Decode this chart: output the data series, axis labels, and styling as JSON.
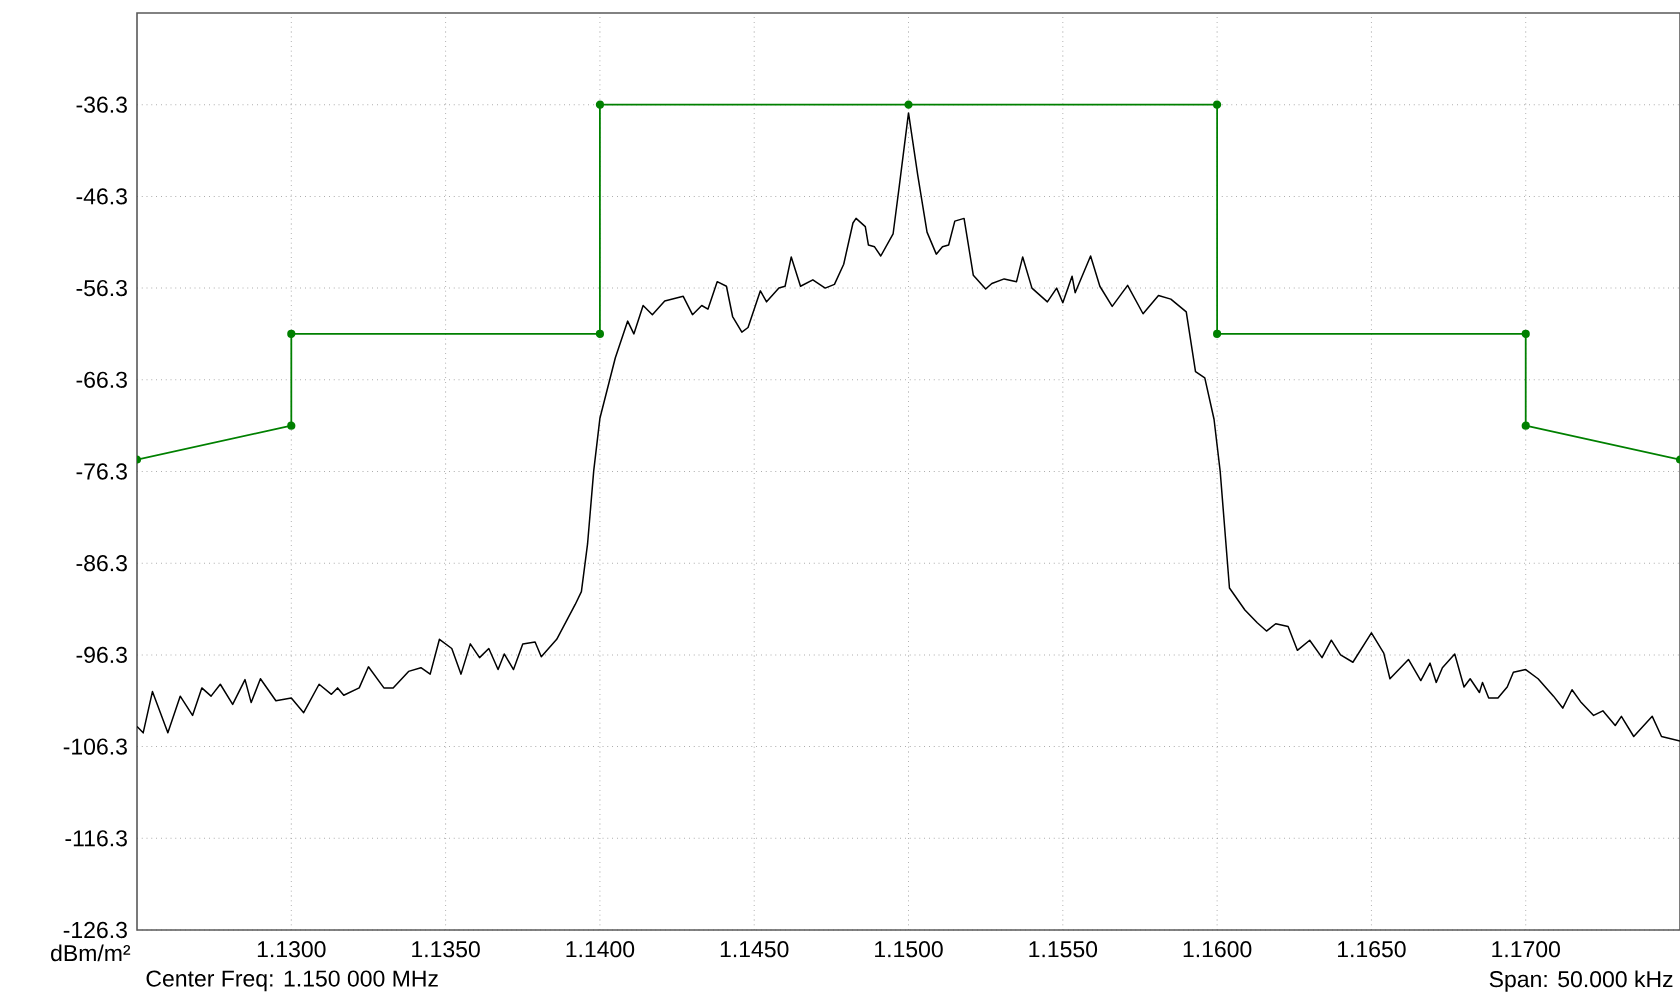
{
  "chart_data": {
    "type": "line",
    "ylabel": "dBm/m²",
    "annotations": [
      "Center Freq: 1.150 000 MHz",
      "Span: 50.000 kHz"
    ],
    "xlim": [
      1.125,
      1.175
    ],
    "ylim": [
      -126.3,
      -26.3
    ],
    "xticks": [
      {
        "value": 1.13,
        "label": "1.1300"
      },
      {
        "value": 1.135,
        "label": "1.1350"
      },
      {
        "value": 1.14,
        "label": "1.1400"
      },
      {
        "value": 1.145,
        "label": "1.1450"
      },
      {
        "value": 1.15,
        "label": "1.1500"
      },
      {
        "value": 1.155,
        "label": "1.1550"
      },
      {
        "value": 1.16,
        "label": "1.1600"
      },
      {
        "value": 1.165,
        "label": "1.1650"
      },
      {
        "value": 1.17,
        "label": "1.1700"
      }
    ],
    "yticks": [
      -126.3,
      -116.3,
      -106.3,
      -96.3,
      -86.3,
      -76.3,
      -66.3,
      -56.3,
      -46.3,
      -36.3
    ],
    "grid": true,
    "series": [
      {
        "color": "#008000",
        "marker": "circle",
        "x": [
          1.125,
          1.13,
          1.13,
          1.14,
          1.14,
          1.15,
          1.16,
          1.16,
          1.17,
          1.17,
          1.175
        ],
        "values": [
          -75.0,
          -71.3,
          -61.3,
          -61.3,
          -36.3,
          -36.3,
          -36.3,
          -61.3,
          -61.3,
          -71.3,
          -75.0
        ]
      },
      {
        "color": "#000000",
        "marker": "none",
        "x": [
          1.125,
          1.1252,
          1.1255,
          1.126,
          1.1264,
          1.1268,
          1.1271,
          1.1274,
          1.1277,
          1.1281,
          1.1285,
          1.1287,
          1.129,
          1.1295,
          1.13,
          1.1304,
          1.1309,
          1.1313,
          1.1315,
          1.1317,
          1.1322,
          1.1325,
          1.133,
          1.1333,
          1.1338,
          1.1342,
          1.1345,
          1.1348,
          1.1352,
          1.1355,
          1.1358,
          1.1361,
          1.1364,
          1.1367,
          1.1369,
          1.1372,
          1.1375,
          1.1379,
          1.1381,
          1.1386,
          1.1392,
          1.1394,
          1.1396,
          1.1398,
          1.14,
          1.1405,
          1.1409,
          1.1411,
          1.1414,
          1.1417,
          1.1421,
          1.1427,
          1.143,
          1.1433,
          1.1435,
          1.1438,
          1.1441,
          1.1443,
          1.1446,
          1.1448,
          1.1452,
          1.1454,
          1.1458,
          1.146,
          1.1462,
          1.1465,
          1.1469,
          1.1473,
          1.1476,
          1.1479,
          1.1482,
          1.1483,
          1.1486,
          1.1487,
          1.1489,
          1.1491,
          1.1495,
          1.1497,
          1.15,
          1.1503,
          1.1506,
          1.1509,
          1.1511,
          1.1513,
          1.1515,
          1.1518,
          1.1521,
          1.1525,
          1.1527,
          1.1531,
          1.1535,
          1.1537,
          1.154,
          1.1545,
          1.1548,
          1.155,
          1.1553,
          1.1554,
          1.1559,
          1.1562,
          1.1566,
          1.1571,
          1.1576,
          1.1581,
          1.1585,
          1.159,
          1.1593,
          1.1596,
          1.1599,
          1.1601,
          1.1604,
          1.1609,
          1.1613,
          1.1616,
          1.1619,
          1.1623,
          1.1626,
          1.163,
          1.1634,
          1.1637,
          1.164,
          1.1644,
          1.165,
          1.1654,
          1.1656,
          1.1662,
          1.1666,
          1.1669,
          1.1671,
          1.1673,
          1.1677,
          1.168,
          1.1682,
          1.1685,
          1.1686,
          1.1688,
          1.1691,
          1.1694,
          1.1696,
          1.17,
          1.1704,
          1.1709,
          1.1712,
          1.1715,
          1.1718,
          1.1722,
          1.1725,
          1.1729,
          1.1731,
          1.1735,
          1.1741,
          1.1744,
          1.175
        ],
        "values": [
          -104.1,
          -104.8,
          -100.3,
          -104.8,
          -100.8,
          -102.9,
          -99.9,
          -100.8,
          -99.5,
          -101.7,
          -99.0,
          -101.5,
          -98.9,
          -101.3,
          -101.0,
          -102.6,
          -99.5,
          -100.6,
          -99.9,
          -100.7,
          -99.9,
          -97.6,
          -99.9,
          -99.9,
          -98.1,
          -97.7,
          -98.4,
          -94.6,
          -95.6,
          -98.4,
          -95.1,
          -96.6,
          -95.6,
          -97.9,
          -96.2,
          -97.9,
          -95.1,
          -94.9,
          -96.5,
          -94.6,
          -90.8,
          -89.4,
          -84.2,
          -76.2,
          -70.5,
          -63.9,
          -59.9,
          -61.3,
          -58.2,
          -59.2,
          -57.7,
          -57.2,
          -59.2,
          -58.2,
          -58.6,
          -55.6,
          -56.1,
          -59.4,
          -61.1,
          -60.6,
          -56.6,
          -57.8,
          -56.3,
          -56.1,
          -52.9,
          -56.1,
          -55.4,
          -56.3,
          -55.9,
          -53.7,
          -49.2,
          -48.7,
          -49.6,
          -51.6,
          -51.8,
          -52.8,
          -50.4,
          -45.2,
          -37.2,
          -44.0,
          -50.2,
          -52.6,
          -51.8,
          -51.6,
          -49.0,
          -48.7,
          -54.9,
          -56.4,
          -55.8,
          -55.3,
          -55.6,
          -52.9,
          -56.3,
          -57.8,
          -56.3,
          -57.9,
          -55.0,
          -56.8,
          -52.8,
          -56.1,
          -58.3,
          -56.0,
          -59.1,
          -57.1,
          -57.5,
          -58.9,
          -65.4,
          -66.1,
          -70.6,
          -76.3,
          -89.0,
          -91.4,
          -92.8,
          -93.7,
          -92.9,
          -93.2,
          -95.8,
          -94.7,
          -96.6,
          -94.7,
          -96.3,
          -97.1,
          -93.9,
          -96.1,
          -98.9,
          -96.8,
          -99.1,
          -97.2,
          -99.3,
          -97.7,
          -96.2,
          -99.8,
          -98.9,
          -100.4,
          -99.3,
          -101.0,
          -101.0,
          -99.8,
          -98.2,
          -97.9,
          -98.9,
          -100.8,
          -102.1,
          -100.1,
          -101.5,
          -102.9,
          -102.4,
          -104.0,
          -103.0,
          -105.2,
          -103.0,
          -105.2,
          -105.7
        ]
      }
    ]
  }
}
